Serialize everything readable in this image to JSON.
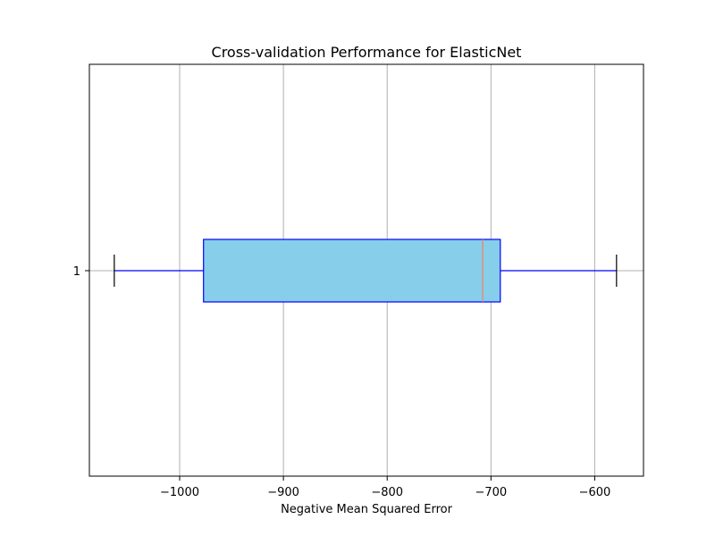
{
  "chart_data": {
    "type": "boxplot",
    "orientation": "horizontal",
    "title": "Cross-validation Performance for ElasticNet",
    "xlabel": "Negative Mean Squared Error",
    "ylabel": "",
    "xlim": [
      -1087,
      -553
    ],
    "x_ticks": [
      -1000,
      -900,
      -800,
      -700,
      -600
    ],
    "x_tick_labels": [
      "−1000",
      "−900",
      "−800",
      "−700",
      "−600"
    ],
    "y_ticks": [
      1
    ],
    "y_tick_labels": [
      "1"
    ],
    "grid": true,
    "boxes": [
      {
        "category": "1",
        "whisker_low": -1063,
        "q1": -977,
        "median": -708,
        "q3": -691,
        "whisker_high": -579
      }
    ],
    "colors": {
      "box_fill": "#87CEEB",
      "box_edge": "#0000FF",
      "whisker": "#0000FF",
      "cap": "#000000",
      "median": "#F08060",
      "grid": "#B0B0B0"
    }
  }
}
